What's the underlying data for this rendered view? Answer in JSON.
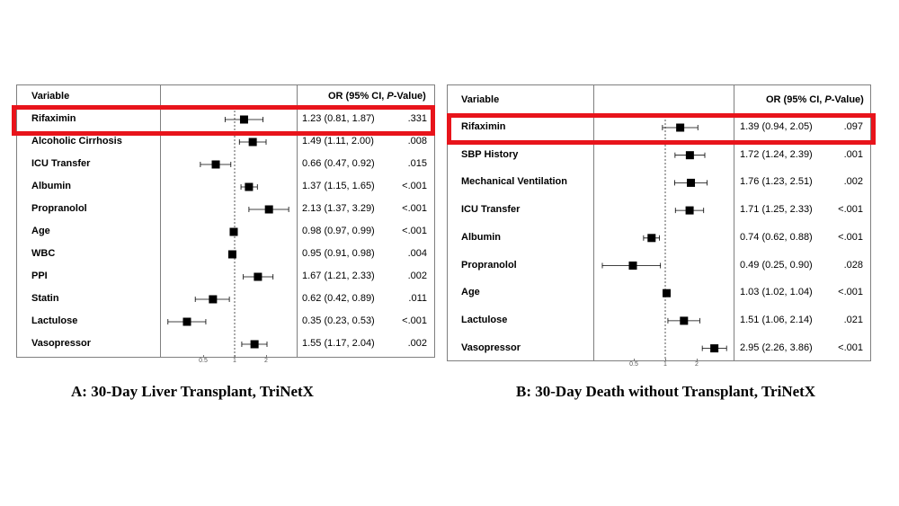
{
  "colors": {
    "highlight": "#e8141b",
    "marker": "#000000"
  },
  "chart_data": [
    {
      "type": "forest",
      "header": {
        "variable": "Variable",
        "or_label": "OR (95% CI, ",
        "p_label": "P",
        "or_tail": "-Value)"
      },
      "caption": "A: 30-Day Liver Transplant, TriNetX",
      "x_scale": "log",
      "reference_line": 1,
      "ticks": [
        "0.5",
        "1",
        "2"
      ],
      "highlighted_row": "Rifaximin",
      "rows": [
        {
          "variable": "Rifaximin",
          "or": 1.23,
          "lo": 0.81,
          "hi": 1.87,
          "or_ci": "1.23 (0.81, 1.87)",
          "p": ".331"
        },
        {
          "variable": "Alcoholic Cirrhosis",
          "or": 1.49,
          "lo": 1.11,
          "hi": 2.0,
          "or_ci": "1.49 (1.11, 2.00)",
          "p": ".008"
        },
        {
          "variable": "ICU Transfer",
          "or": 0.66,
          "lo": 0.47,
          "hi": 0.92,
          "or_ci": "0.66 (0.47, 0.92)",
          "p": ".015"
        },
        {
          "variable": "Albumin",
          "or": 1.37,
          "lo": 1.15,
          "hi": 1.65,
          "or_ci": "1.37 (1.15, 1.65)",
          "p": "<.001"
        },
        {
          "variable": "Propranolol",
          "or": 2.13,
          "lo": 1.37,
          "hi": 3.29,
          "or_ci": "2.13 (1.37, 3.29)",
          "p": "<.001"
        },
        {
          "variable": "Age",
          "or": 0.98,
          "lo": 0.97,
          "hi": 0.99,
          "or_ci": "0.98 (0.97, 0.99)",
          "p": "<.001"
        },
        {
          "variable": "WBC",
          "or": 0.95,
          "lo": 0.91,
          "hi": 0.98,
          "or_ci": "0.95 (0.91, 0.98)",
          "p": ".004"
        },
        {
          "variable": "PPI",
          "or": 1.67,
          "lo": 1.21,
          "hi": 2.33,
          "or_ci": "1.67 (1.21, 2.33)",
          "p": ".002"
        },
        {
          "variable": "Statin",
          "or": 0.62,
          "lo": 0.42,
          "hi": 0.89,
          "or_ci": "0.62 (0.42, 0.89)",
          "p": ".011"
        },
        {
          "variable": "Lactulose",
          "or": 0.35,
          "lo": 0.23,
          "hi": 0.53,
          "or_ci": "0.35 (0.23, 0.53)",
          "p": "<.001"
        },
        {
          "variable": "Vasopressor",
          "or": 1.55,
          "lo": 1.17,
          "hi": 2.04,
          "or_ci": "1.55 (1.17, 2.04)",
          "p": ".002"
        }
      ]
    },
    {
      "type": "forest",
      "header": {
        "variable": "Variable",
        "or_label": "OR (95% CI, ",
        "p_label": "P",
        "or_tail": "-Value)"
      },
      "caption": "B: 30-Day Death without Transplant, TriNetX",
      "x_scale": "log",
      "reference_line": 1,
      "ticks": [
        "0.5",
        "1",
        "2"
      ],
      "highlighted_row": "Rifaximin",
      "rows": [
        {
          "variable": "Rifaximin",
          "or": 1.39,
          "lo": 0.94,
          "hi": 2.05,
          "or_ci": "1.39 (0.94, 2.05)",
          "p": ".097"
        },
        {
          "variable": "SBP History",
          "or": 1.72,
          "lo": 1.24,
          "hi": 2.39,
          "or_ci": "1.72 (1.24, 2.39)",
          "p": ".001"
        },
        {
          "variable": "Mechanical Ventilation",
          "or": 1.76,
          "lo": 1.23,
          "hi": 2.51,
          "or_ci": "1.76 (1.23, 2.51)",
          "p": ".002"
        },
        {
          "variable": "ICU Transfer",
          "or": 1.71,
          "lo": 1.25,
          "hi": 2.33,
          "or_ci": "1.71 (1.25, 2.33)",
          "p": "<.001"
        },
        {
          "variable": "Albumin",
          "or": 0.74,
          "lo": 0.62,
          "hi": 0.88,
          "or_ci": "0.74 (0.62, 0.88)",
          "p": "<.001"
        },
        {
          "variable": "Propranolol",
          "or": 0.49,
          "lo": 0.25,
          "hi": 0.9,
          "or_ci": "0.49 (0.25, 0.90)",
          "p": ".028"
        },
        {
          "variable": "Age",
          "or": 1.03,
          "lo": 1.02,
          "hi": 1.04,
          "or_ci": "1.03 (1.02, 1.04)",
          "p": "<.001"
        },
        {
          "variable": "Lactulose",
          "or": 1.51,
          "lo": 1.06,
          "hi": 2.14,
          "or_ci": "1.51 (1.06, 2.14)",
          "p": ".021"
        },
        {
          "variable": "Vasopressor",
          "or": 2.95,
          "lo": 2.26,
          "hi": 3.86,
          "or_ci": "2.95 (2.26, 3.86)",
          "p": "<.001"
        }
      ]
    }
  ]
}
